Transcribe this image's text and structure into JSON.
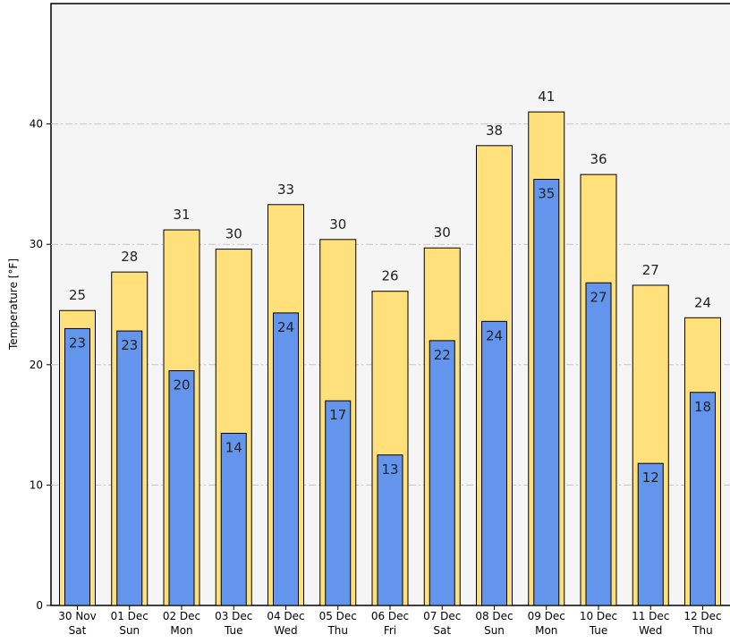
{
  "chart_data": {
    "type": "bar",
    "title": "",
    "xlabel": "",
    "ylabel": "Temperature [°F]",
    "ylim": [
      0,
      50
    ],
    "yticks": [
      0,
      10,
      20,
      30,
      40
    ],
    "grid": "horizontal dashed",
    "categories": [
      {
        "date": "30 Nov",
        "day": "Sat"
      },
      {
        "date": "01 Dec",
        "day": "Sun"
      },
      {
        "date": "02 Dec",
        "day": "Mon"
      },
      {
        "date": "03 Dec",
        "day": "Tue"
      },
      {
        "date": "04 Dec",
        "day": "Wed"
      },
      {
        "date": "05 Dec",
        "day": "Thu"
      },
      {
        "date": "06 Dec",
        "day": "Fri"
      },
      {
        "date": "07 Dec",
        "day": "Sat"
      },
      {
        "date": "08 Dec",
        "day": "Sun"
      },
      {
        "date": "09 Dec",
        "day": "Mon"
      },
      {
        "date": "10 Dec",
        "day": "Tue"
      },
      {
        "date": "11 Dec",
        "day": "Wed"
      },
      {
        "date": "12 Dec",
        "day": "Thu"
      }
    ],
    "series": [
      {
        "color": "#FFE07A",
        "values": [
          24.5,
          27.7,
          31.2,
          29.6,
          33.3,
          30.4,
          26.1,
          29.7,
          38.2,
          41.0,
          35.8,
          26.6,
          23.9
        ],
        "labels": [
          "25",
          "28",
          "31",
          "30",
          "33",
          "30",
          "26",
          "30",
          "38",
          "41",
          "36",
          "27",
          "24"
        ]
      },
      {
        "color": "#6495ED",
        "values": [
          23.0,
          22.8,
          19.5,
          14.3,
          24.3,
          17.0,
          12.5,
          22.0,
          23.6,
          35.4,
          26.8,
          11.8,
          17.7
        ],
        "labels": [
          "23",
          "23",
          "20",
          "14",
          "24",
          "17",
          "13",
          "22",
          "24",
          "35",
          "27",
          "12",
          "18"
        ]
      }
    ]
  }
}
